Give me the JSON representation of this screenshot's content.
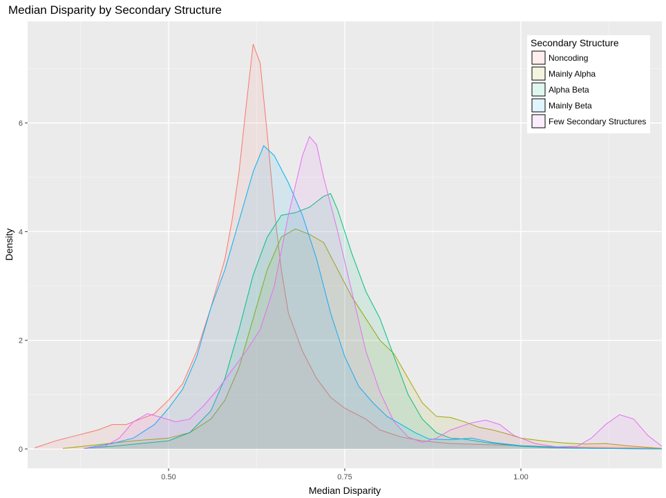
{
  "chart_data": {
    "type": "area",
    "title": "Median Disparity by Secondary Structure",
    "xlabel": "Median Disparity",
    "ylabel": "Density",
    "xlim": [
      0.3,
      1.2
    ],
    "ylim": [
      0,
      7.5
    ],
    "x_ticks": [
      0.5,
      0.75,
      1.0
    ],
    "x_tick_labels": [
      "0.50",
      "0.75",
      "1.00"
    ],
    "y_ticks": [
      0,
      2,
      4,
      6
    ],
    "y_tick_labels": [
      "0",
      "2",
      "4",
      "6"
    ],
    "grid": true,
    "legend": {
      "title": "Secondary Structure",
      "position": "top-right"
    },
    "series": [
      {
        "name": "Noncoding",
        "color": "#F8766D",
        "points": [
          [
            0.31,
            0.02
          ],
          [
            0.34,
            0.15
          ],
          [
            0.37,
            0.25
          ],
          [
            0.4,
            0.35
          ],
          [
            0.42,
            0.45
          ],
          [
            0.44,
            0.45
          ],
          [
            0.46,
            0.55
          ],
          [
            0.48,
            0.65
          ],
          [
            0.5,
            0.9
          ],
          [
            0.52,
            1.2
          ],
          [
            0.54,
            1.8
          ],
          [
            0.56,
            2.6
          ],
          [
            0.58,
            3.5
          ],
          [
            0.59,
            4.2
          ],
          [
            0.6,
            5.1
          ],
          [
            0.61,
            6.3
          ],
          [
            0.62,
            7.45
          ],
          [
            0.63,
            7.1
          ],
          [
            0.64,
            5.8
          ],
          [
            0.65,
            4.4
          ],
          [
            0.66,
            3.3
          ],
          [
            0.67,
            2.5
          ],
          [
            0.69,
            1.8
          ],
          [
            0.71,
            1.3
          ],
          [
            0.73,
            0.95
          ],
          [
            0.75,
            0.75
          ],
          [
            0.78,
            0.55
          ],
          [
            0.8,
            0.35
          ],
          [
            0.83,
            0.22
          ],
          [
            0.86,
            0.15
          ],
          [
            0.9,
            0.1
          ],
          [
            0.95,
            0.08
          ],
          [
            1.0,
            0.06
          ],
          [
            1.05,
            0.04
          ],
          [
            1.1,
            0.03
          ],
          [
            1.15,
            0.02
          ],
          [
            1.2,
            0.01
          ]
        ]
      },
      {
        "name": "Mainly Alpha",
        "color": "#A3A500",
        "points": [
          [
            0.35,
            0.01
          ],
          [
            0.4,
            0.08
          ],
          [
            0.45,
            0.15
          ],
          [
            0.5,
            0.2
          ],
          [
            0.53,
            0.3
          ],
          [
            0.56,
            0.55
          ],
          [
            0.58,
            0.9
          ],
          [
            0.6,
            1.5
          ],
          [
            0.62,
            2.4
          ],
          [
            0.64,
            3.3
          ],
          [
            0.66,
            3.9
          ],
          [
            0.68,
            4.05
          ],
          [
            0.7,
            3.95
          ],
          [
            0.72,
            3.8
          ],
          [
            0.74,
            3.3
          ],
          [
            0.76,
            2.8
          ],
          [
            0.78,
            2.4
          ],
          [
            0.8,
            2.0
          ],
          [
            0.82,
            1.75
          ],
          [
            0.84,
            1.3
          ],
          [
            0.86,
            0.85
          ],
          [
            0.88,
            0.6
          ],
          [
            0.9,
            0.58
          ],
          [
            0.92,
            0.5
          ],
          [
            0.94,
            0.4
          ],
          [
            0.96,
            0.35
          ],
          [
            0.98,
            0.28
          ],
          [
            1.0,
            0.2
          ],
          [
            1.03,
            0.15
          ],
          [
            1.06,
            0.11
          ],
          [
            1.09,
            0.09
          ],
          [
            1.12,
            0.1
          ],
          [
            1.15,
            0.06
          ],
          [
            1.2,
            0.01
          ]
        ]
      },
      {
        "name": "Alpha Beta",
        "color": "#00BF7D",
        "points": [
          [
            0.38,
            0.01
          ],
          [
            0.42,
            0.05
          ],
          [
            0.46,
            0.1
          ],
          [
            0.5,
            0.15
          ],
          [
            0.53,
            0.3
          ],
          [
            0.56,
            0.7
          ],
          [
            0.58,
            1.3
          ],
          [
            0.6,
            2.2
          ],
          [
            0.62,
            3.2
          ],
          [
            0.64,
            3.9
          ],
          [
            0.66,
            4.3
          ],
          [
            0.68,
            4.35
          ],
          [
            0.7,
            4.45
          ],
          [
            0.72,
            4.65
          ],
          [
            0.73,
            4.7
          ],
          [
            0.74,
            4.4
          ],
          [
            0.76,
            3.6
          ],
          [
            0.78,
            2.9
          ],
          [
            0.8,
            2.4
          ],
          [
            0.82,
            1.7
          ],
          [
            0.84,
            1.0
          ],
          [
            0.86,
            0.55
          ],
          [
            0.88,
            0.3
          ],
          [
            0.9,
            0.2
          ],
          [
            0.92,
            0.18
          ],
          [
            0.95,
            0.12
          ],
          [
            1.0,
            0.05
          ],
          [
            1.05,
            0.02
          ],
          [
            1.1,
            0.01
          ],
          [
            1.2,
            0.0
          ]
        ]
      },
      {
        "name": "Mainly Beta",
        "color": "#00B0F6",
        "points": [
          [
            0.38,
            0.01
          ],
          [
            0.42,
            0.1
          ],
          [
            0.45,
            0.2
          ],
          [
            0.48,
            0.45
          ],
          [
            0.5,
            0.75
          ],
          [
            0.52,
            1.1
          ],
          [
            0.54,
            1.7
          ],
          [
            0.56,
            2.6
          ],
          [
            0.58,
            3.3
          ],
          [
            0.6,
            4.2
          ],
          [
            0.62,
            5.1
          ],
          [
            0.635,
            5.58
          ],
          [
            0.65,
            5.4
          ],
          [
            0.67,
            4.9
          ],
          [
            0.69,
            4.3
          ],
          [
            0.71,
            3.5
          ],
          [
            0.73,
            2.5
          ],
          [
            0.75,
            1.7
          ],
          [
            0.77,
            1.15
          ],
          [
            0.79,
            0.85
          ],
          [
            0.81,
            0.6
          ],
          [
            0.83,
            0.45
          ],
          [
            0.85,
            0.3
          ],
          [
            0.87,
            0.18
          ],
          [
            0.9,
            0.17
          ],
          [
            0.93,
            0.2
          ],
          [
            0.96,
            0.12
          ],
          [
            1.0,
            0.06
          ],
          [
            1.05,
            0.03
          ],
          [
            1.1,
            0.01
          ],
          [
            1.2,
            0.0
          ]
        ]
      },
      {
        "name": "Few Secondary Structures",
        "color": "#E76BF3",
        "points": [
          [
            0.38,
            0.01
          ],
          [
            0.41,
            0.05
          ],
          [
            0.43,
            0.2
          ],
          [
            0.45,
            0.5
          ],
          [
            0.47,
            0.65
          ],
          [
            0.49,
            0.58
          ],
          [
            0.51,
            0.5
          ],
          [
            0.53,
            0.55
          ],
          [
            0.55,
            0.8
          ],
          [
            0.57,
            1.1
          ],
          [
            0.59,
            1.45
          ],
          [
            0.61,
            1.8
          ],
          [
            0.63,
            2.2
          ],
          [
            0.65,
            3.0
          ],
          [
            0.67,
            4.3
          ],
          [
            0.69,
            5.4
          ],
          [
            0.7,
            5.75
          ],
          [
            0.71,
            5.6
          ],
          [
            0.72,
            5.0
          ],
          [
            0.74,
            4.0
          ],
          [
            0.76,
            2.9
          ],
          [
            0.78,
            1.8
          ],
          [
            0.8,
            1.05
          ],
          [
            0.82,
            0.5
          ],
          [
            0.84,
            0.22
          ],
          [
            0.86,
            0.12
          ],
          [
            0.88,
            0.2
          ],
          [
            0.9,
            0.35
          ],
          [
            0.93,
            0.48
          ],
          [
            0.95,
            0.53
          ],
          [
            0.97,
            0.45
          ],
          [
            0.99,
            0.25
          ],
          [
            1.02,
            0.1
          ],
          [
            1.05,
            0.04
          ],
          [
            1.08,
            0.05
          ],
          [
            1.1,
            0.2
          ],
          [
            1.12,
            0.45
          ],
          [
            1.14,
            0.63
          ],
          [
            1.16,
            0.55
          ],
          [
            1.18,
            0.25
          ],
          [
            1.2,
            0.05
          ]
        ]
      }
    ]
  }
}
